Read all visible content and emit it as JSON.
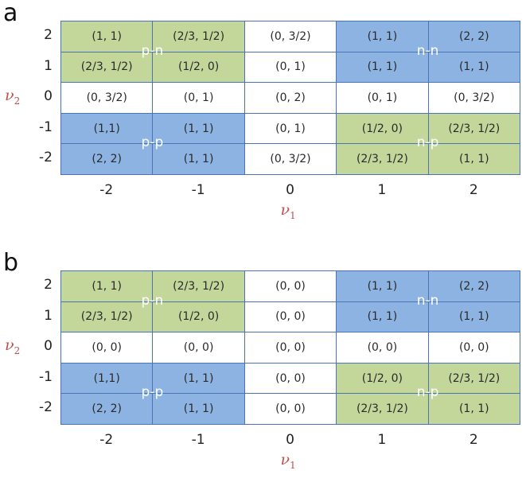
{
  "x_ticks": [
    "-2",
    "-1",
    "0",
    "1",
    "2"
  ],
  "y_ticks": [
    "2",
    "1",
    "0",
    "-1",
    "-2"
  ],
  "x_axis": {
    "symbol": "ν",
    "sub": "1"
  },
  "y_axis": {
    "symbol": "ν",
    "sub": "2"
  },
  "panels": [
    {
      "letter": "a",
      "rows": [
        [
          "(1, 1)",
          "(2/3, 1/2)",
          "(0, 3/2)",
          "(1, 1)",
          "(2, 2)"
        ],
        [
          "(2/3, 1/2)",
          "(1/2, 0)",
          "(0, 1)",
          "(1, 1)",
          "(1, 1)"
        ],
        [
          "(0, 3/2)",
          "(0, 1)",
          "(0, 2)",
          "(0, 1)",
          "(0, 3/2)"
        ],
        [
          "(1,1)",
          "(1, 1)",
          "(0, 1)",
          "(1/2, 0)",
          "(2/3, 1/2)"
        ],
        [
          "(2, 2)",
          "(1, 1)",
          "(0, 3/2)",
          "(2/3, 1/2)",
          "(1, 1)"
        ]
      ],
      "regions": {
        "top_left": "p-n",
        "top_right": "n-n",
        "bottom_left": "p-p",
        "bottom_right": "n-p"
      }
    },
    {
      "letter": "b",
      "rows": [
        [
          "(1, 1)",
          "(2/3, 1/2)",
          "(0, 0)",
          "(1, 1)",
          "(2, 2)"
        ],
        [
          "(2/3, 1/2)",
          "(1/2, 0)",
          "(0, 0)",
          "(1, 1)",
          "(1, 1)"
        ],
        [
          "(0, 0)",
          "(0, 0)",
          "(0, 0)",
          "(0, 0)",
          "(0, 0)"
        ],
        [
          "(1,1)",
          "(1, 1)",
          "(0, 0)",
          "(1/2, 0)",
          "(2/3, 1/2)"
        ],
        [
          "(2, 2)",
          "(1, 1)",
          "(0, 0)",
          "(2/3, 1/2)",
          "(1, 1)"
        ]
      ],
      "regions": {
        "top_left": "p-n",
        "top_right": "n-n",
        "bottom_left": "p-p",
        "bottom_right": "n-p"
      }
    }
  ],
  "colors": {
    "green": "#c4d79b",
    "blue": "#8db3e2",
    "white": "#ffffff",
    "border": "#4a74b4",
    "axis_label": "#c0504d"
  }
}
